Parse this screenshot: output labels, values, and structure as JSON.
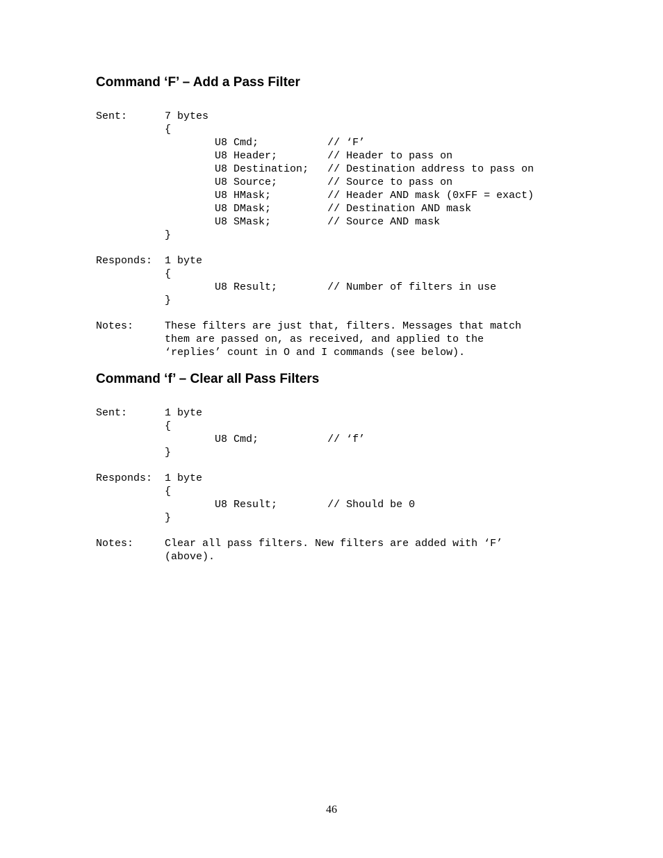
{
  "heading_F": "Command ‘F’ – Add a Pass Filter",
  "heading_f": "Command ‘f’ – Clear all Pass Filters",
  "F_sent_label": "Sent:",
  "F_sent_size": "7 bytes",
  "F_sent_open": "{",
  "F_sent_l1": "        U8 Cmd;           // ‘F’",
  "F_sent_l2": "        U8 Header;        // Header to pass on",
  "F_sent_l3": "        U8 Destination;   // Destination address to pass on",
  "F_sent_l4": "        U8 Source;        // Source to pass on",
  "F_sent_l5": "        U8 HMask;         // Header AND mask (0xFF = exact)",
  "F_sent_l6": "        U8 DMask;         // Destination AND mask",
  "F_sent_l7": "        U8 SMask;         // Source AND mask",
  "F_sent_close": "}",
  "F_resp_label": "Responds:",
  "F_resp_size": "1 byte",
  "F_resp_open": "{",
  "F_resp_l1": "        U8 Result;        // Number of filters in use",
  "F_resp_close": "}",
  "F_notes_label": "Notes:",
  "F_notes_l1": "These filters are just that, filters. Messages that match",
  "F_notes_l2": "them are passed on, as received, and applied to the",
  "F_notes_l3": "‘replies’ count in O and I commands (see below).",
  "f_sent_label": "Sent:",
  "f_sent_size": "1 byte",
  "f_sent_open": "{",
  "f_sent_l1": "        U8 Cmd;           // ‘f’",
  "f_sent_close": "}",
  "f_resp_label": "Responds:",
  "f_resp_size": "1 byte",
  "f_resp_open": "{",
  "f_resp_l1": "        U8 Result;        // Should be 0",
  "f_resp_close": "}",
  "f_notes_label": "Notes:",
  "f_notes_l1": "Clear all pass filters. New filters are added with ‘F’",
  "f_notes_l2": "(above).",
  "page_number": "46"
}
